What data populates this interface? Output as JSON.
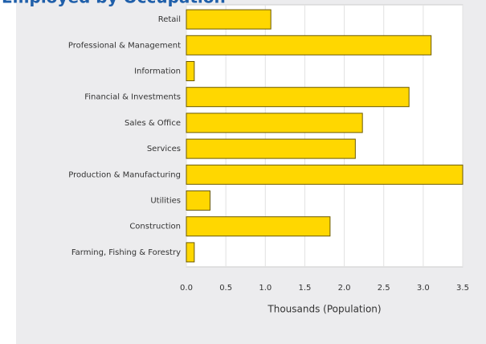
{
  "chart_data": {
    "type": "bar",
    "orientation": "horizontal",
    "title": "Employed by Occupation",
    "categories": [
      "Retail",
      "Professional & Management",
      "Information",
      "Financial & Investments",
      "Sales & Office",
      "Services",
      "Production & Manufacturing",
      "Utilities",
      "Construction",
      "Farming, Fishing & Forestry"
    ],
    "values": [
      1.07,
      3.1,
      0.1,
      2.82,
      2.23,
      2.14,
      3.5,
      0.3,
      1.82,
      0.1
    ],
    "color": "#ffd700",
    "xlabel": "Thousands (Population)",
    "xlim": [
      0,
      3.5
    ],
    "xticks": [
      {
        "value": 0,
        "label": "0.0"
      },
      0.5,
      {
        "value": 1,
        "label": "1.0"
      },
      1.5,
      {
        "value": 2,
        "label": "2.0"
      },
      2.5,
      {
        "value": 3,
        "label": "3.0"
      },
      3.5
    ],
    "grid": true
  }
}
